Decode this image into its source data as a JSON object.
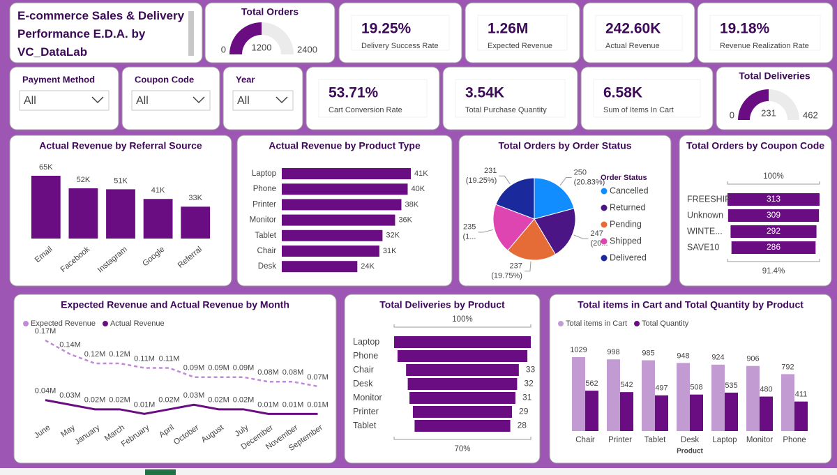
{
  "header": {
    "title": "E-commerce Sales & Delivery Performance E.D.A. by VC_DataLab"
  },
  "gauges": [
    {
      "title": "Total Orders",
      "value": 1200,
      "min": 0,
      "max": 2400
    },
    {
      "title": "Total Deliveries",
      "value": 231,
      "min": 0,
      "max": 462
    }
  ],
  "cards": [
    {
      "value": "19.25%",
      "label": "Delivery Success Rate"
    },
    {
      "value": "1.26M",
      "label": "Expected Revenue"
    },
    {
      "value": "242.60K",
      "label": "Actual Revenue"
    },
    {
      "value": "19.18%",
      "label": "Revenue Realization Rate"
    },
    {
      "value": "53.71%",
      "label": "Cart Conversion Rate"
    },
    {
      "value": "3.54K",
      "label": "Total Purchase Quantity"
    },
    {
      "value": "6.58K",
      "label": "Sum of Items In Cart"
    }
  ],
  "slicers": [
    {
      "title": "Payment Method",
      "value": "All"
    },
    {
      "title": "Coupon Code",
      "value": "All"
    },
    {
      "title": "Year",
      "value": "All"
    }
  ],
  "chart_data": [
    {
      "type": "bar",
      "title": "Actual Revenue by Referral Source",
      "categories": [
        "Email",
        "Facebook",
        "Instagram",
        "Google",
        "Referral"
      ],
      "values": [
        65000,
        52000,
        51000,
        41000,
        33000
      ],
      "value_labels": [
        "65K",
        "52K",
        "51K",
        "41K",
        "33K"
      ],
      "color": "#6a0d83"
    },
    {
      "type": "bar",
      "orientation": "horizontal",
      "title": "Actual Revenue by Product Type",
      "categories": [
        "Laptop",
        "Phone",
        "Printer",
        "Monitor",
        "Tablet",
        "Chair",
        "Desk"
      ],
      "values": [
        41000,
        40000,
        38000,
        36000,
        32000,
        31000,
        24000
      ],
      "value_labels": [
        "41K",
        "40K",
        "38K",
        "36K",
        "32K",
        "31K",
        "24K"
      ],
      "color": "#6a0d83"
    },
    {
      "type": "pie",
      "title": "Total Orders by Order Status",
      "legend_title": "Order Status",
      "categories": [
        "Cancelled",
        "Returned",
        "Pending",
        "Shipped",
        "Delivered"
      ],
      "values": [
        250,
        247,
        237,
        235,
        231
      ],
      "percent_labels": [
        "(20.83%)",
        "(20...",
        "(19.75%)",
        "(1...",
        "(19.25%)"
      ],
      "colors": [
        "#118dff",
        "#4b1585",
        "#e66c37",
        "#df45b0",
        "#1a2a9c"
      ]
    },
    {
      "type": "funnel",
      "title": "Total Orders by Coupon Code",
      "categories": [
        "FREESHIP",
        "Unknown",
        "WINTE...",
        "SAVE10"
      ],
      "values": [
        313,
        309,
        292,
        286
      ],
      "top_label": "100%",
      "bottom_label": "91.4%",
      "color": "#6a0d83"
    },
    {
      "type": "line",
      "title": "Expected Revenue and Actual Revenue by Month",
      "categories": [
        "June",
        "May",
        "January",
        "March",
        "February",
        "April",
        "October",
        "August",
        "July",
        "December",
        "November",
        "September"
      ],
      "series": [
        {
          "name": "Expected Revenue",
          "color": "#c08ad6",
          "dashed": true,
          "values": [
            170000,
            140000,
            120000,
            120000,
            110000,
            110000,
            90000,
            90000,
            90000,
            80000,
            80000,
            70000
          ],
          "value_labels": [
            "0.17M",
            "0.14M",
            "0.12M",
            "0.12M",
            "0.11M",
            "0.11M",
            "0.09M",
            "0.09M",
            "0.09M",
            "0.08M",
            "0.08M",
            "0.07M"
          ]
        },
        {
          "name": "Actual Revenue",
          "color": "#6a0d83",
          "values": [
            40000,
            30000,
            20000,
            20000,
            10000,
            20000,
            30000,
            20000,
            20000,
            10000,
            10000,
            10000
          ],
          "value_labels": [
            "0.04M",
            "0.03M",
            "0.02M",
            "0.02M",
            "0.01M",
            "0.02M",
            "0.03M",
            "0.02M",
            "0.02M",
            "0.01M",
            "0.01M",
            "0.01M"
          ]
        }
      ]
    },
    {
      "type": "funnel",
      "title": "Total Deliveries by Product",
      "categories": [
        "Laptop",
        "Phone",
        "Chair",
        "Desk",
        "Monitor",
        "Printer",
        "Tablet"
      ],
      "values": [
        40,
        38,
        33,
        32,
        31,
        29,
        28
      ],
      "value_labels": [
        null,
        null,
        "33",
        "32",
        "31",
        "29",
        "28"
      ],
      "top_label": "100%",
      "bottom_label": "70%",
      "color": "#6a0d83"
    },
    {
      "type": "bar",
      "title": "Total items in Cart and Total Quantity by Product",
      "xlabel": "Product",
      "categories": [
        "Chair",
        "Printer",
        "Tablet",
        "Desk",
        "Laptop",
        "Monitor",
        "Phone"
      ],
      "series": [
        {
          "name": "Total items in Cart",
          "color": "#c39bd3",
          "values": [
            1029,
            998,
            985,
            948,
            924,
            906,
            792
          ]
        },
        {
          "name": "Total Quantity",
          "color": "#6a0d83",
          "values": [
            562,
            542,
            497,
            508,
            535,
            480,
            411
          ]
        }
      ]
    }
  ]
}
